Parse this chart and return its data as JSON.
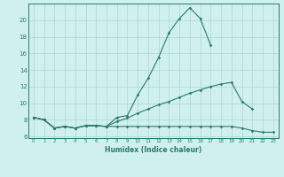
{
  "line1_x": [
    0,
    1,
    2,
    3,
    4,
    5,
    6,
    7,
    8,
    9,
    10,
    11,
    12,
    13,
    14,
    15,
    16,
    17
  ],
  "line1_y": [
    8.3,
    8.0,
    7.0,
    7.2,
    7.0,
    7.3,
    7.3,
    7.2,
    8.3,
    8.5,
    11.0,
    13.0,
    15.5,
    18.5,
    20.2,
    21.5,
    20.2,
    17.0
  ],
  "line2_x": [
    0,
    1,
    2,
    3,
    4,
    5,
    6,
    7,
    8,
    9,
    10,
    11,
    12,
    13,
    14,
    15,
    16,
    17,
    18,
    19,
    20,
    21
  ],
  "line2_y": [
    8.3,
    8.0,
    7.0,
    7.2,
    7.0,
    7.3,
    7.3,
    7.2,
    7.8,
    8.2,
    8.8,
    9.3,
    9.8,
    10.2,
    10.7,
    11.2,
    11.6,
    12.0,
    12.3,
    12.5,
    10.2,
    9.3
  ],
  "line3_x": [
    0,
    1,
    2,
    3,
    4,
    5,
    6,
    7,
    8,
    9,
    10,
    11,
    12,
    13,
    14,
    15,
    16,
    17,
    18,
    19,
    20,
    21,
    22,
    23
  ],
  "line3_y": [
    8.3,
    8.0,
    7.0,
    7.2,
    7.0,
    7.3,
    7.3,
    7.2,
    7.2,
    7.2,
    7.2,
    7.2,
    7.2,
    7.2,
    7.2,
    7.2,
    7.2,
    7.2,
    7.2,
    7.2,
    7.0,
    6.7,
    6.5,
    6.5
  ],
  "line_color": "#2a7a6a",
  "bg_color": "#cff0ec",
  "grid_color": "#aad8d0",
  "xlabel": "Humidex (Indice chaleur)",
  "yticks": [
    6,
    8,
    10,
    12,
    14,
    16,
    18,
    20
  ],
  "xticks": [
    0,
    1,
    2,
    3,
    4,
    5,
    6,
    7,
    8,
    9,
    10,
    11,
    12,
    13,
    14,
    15,
    16,
    17,
    18,
    19,
    20,
    21,
    22,
    23
  ],
  "ylim": [
    5.8,
    22.0
  ],
  "xlim": [
    -0.5,
    23.5
  ]
}
